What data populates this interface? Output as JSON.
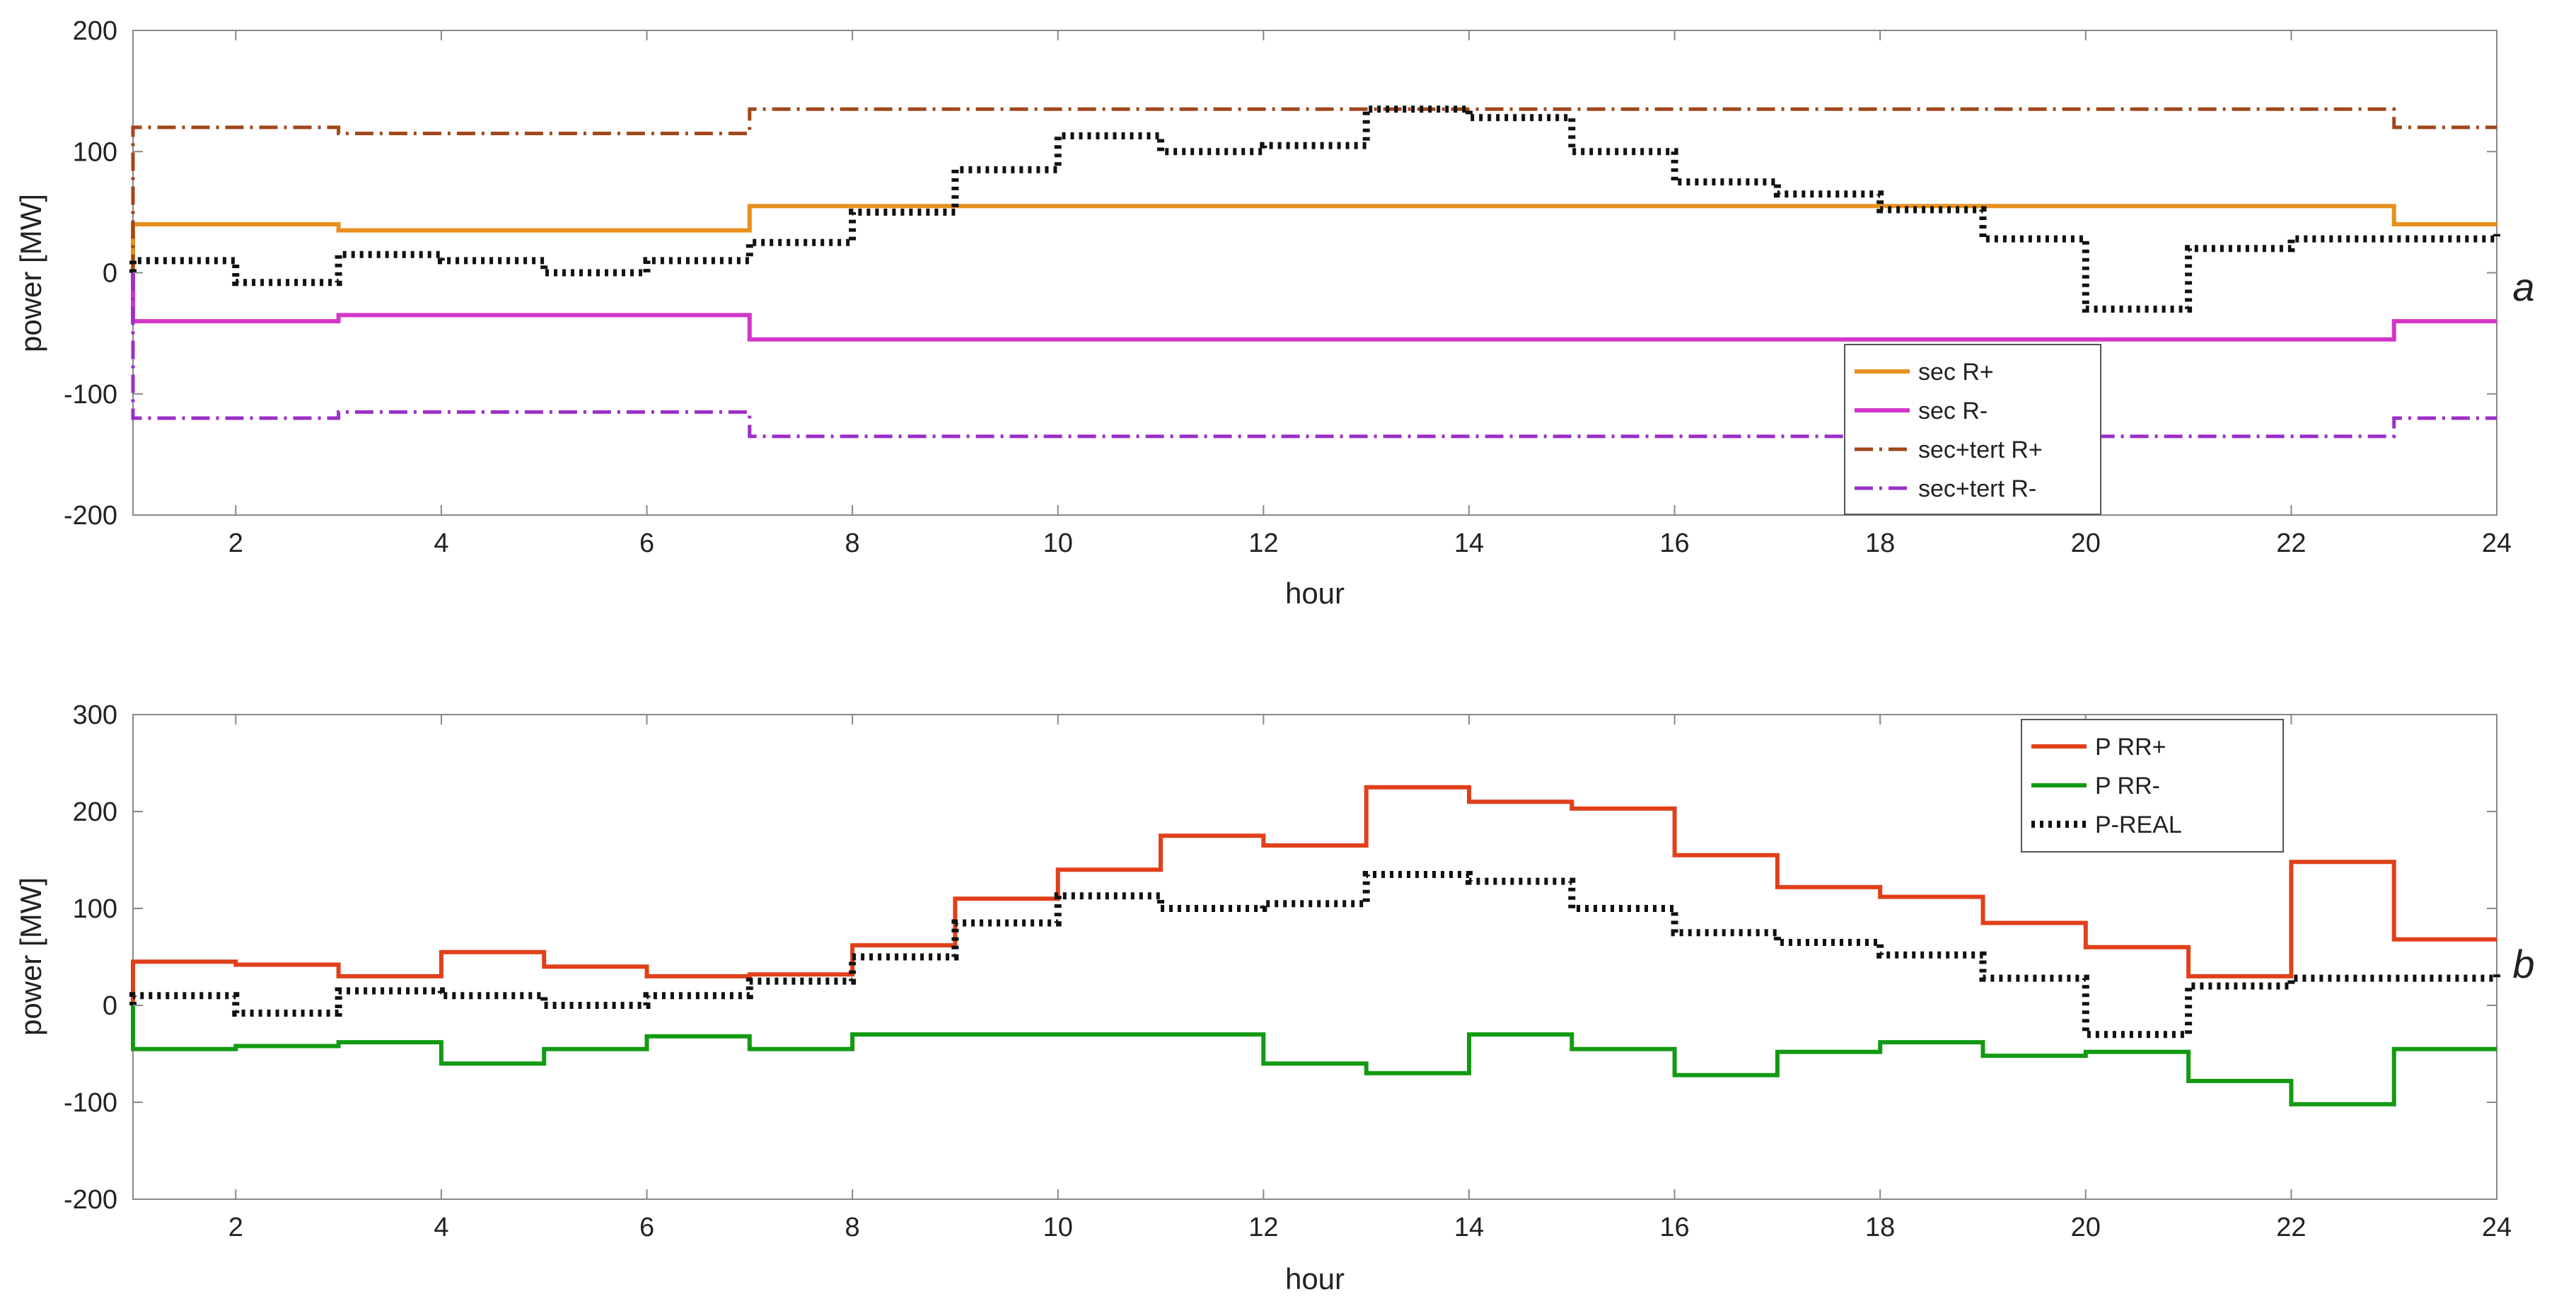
{
  "chart_data": [
    {
      "panel": "a",
      "type": "line",
      "step": "post",
      "xlabel": "hour",
      "ylabel": "power [MW]",
      "xlim": [
        1,
        24
      ],
      "ylim": [
        -200,
        200
      ],
      "xticks": [
        2,
        4,
        6,
        8,
        10,
        12,
        14,
        16,
        18,
        20,
        22,
        24
      ],
      "yticks": [
        -200,
        -100,
        0,
        100,
        200
      ],
      "grid": false,
      "legend_position": "bottom-right",
      "x": [
        1,
        2,
        3,
        4,
        5,
        6,
        7,
        8,
        9,
        10,
        11,
        12,
        13,
        14,
        15,
        16,
        17,
        18,
        19,
        20,
        21,
        22,
        23,
        24
      ],
      "series": [
        {
          "name": "sec R+",
          "color": "#E8901E",
          "dash": "solid",
          "in_legend": true,
          "values": [
            40,
            40,
            35,
            35,
            35,
            35,
            55,
            55,
            55,
            55,
            55,
            55,
            55,
            55,
            55,
            55,
            55,
            55,
            55,
            55,
            55,
            55,
            40,
            40
          ]
        },
        {
          "name": "sec R-",
          "color": "#D236C8",
          "dash": "solid",
          "in_legend": true,
          "values": [
            -40,
            -40,
            -35,
            -35,
            -35,
            -35,
            -55,
            -55,
            -55,
            -55,
            -55,
            -55,
            -55,
            -55,
            -55,
            -55,
            -55,
            -55,
            -55,
            -55,
            -55,
            -55,
            -40,
            -40
          ]
        },
        {
          "name": "sec+tert R+",
          "color": "#A0471A",
          "dash": "dashdot",
          "in_legend": true,
          "values": [
            120,
            120,
            115,
            115,
            115,
            115,
            135,
            135,
            135,
            135,
            135,
            135,
            135,
            135,
            135,
            135,
            135,
            135,
            135,
            135,
            135,
            135,
            120,
            120
          ]
        },
        {
          "name": "sec+tert R-",
          "color": "#9B30C8",
          "dash": "dashdot",
          "in_legend": true,
          "values": [
            -120,
            -120,
            -115,
            -115,
            -115,
            -115,
            -135,
            -135,
            -135,
            -135,
            -135,
            -135,
            -135,
            -135,
            -135,
            -135,
            -135,
            -135,
            -135,
            -135,
            -135,
            -135,
            -120,
            -120
          ]
        },
        {
          "name": "P-REAL",
          "color": "#111111",
          "dash": "dotted",
          "in_legend": false,
          "values": [
            10,
            -8,
            15,
            10,
            0,
            10,
            25,
            50,
            85,
            113,
            100,
            105,
            135,
            128,
            100,
            75,
            65,
            52,
            28,
            -30,
            20,
            28,
            28,
            32
          ]
        }
      ]
    },
    {
      "panel": "b",
      "type": "line",
      "step": "post",
      "xlabel": "hour",
      "ylabel": "power [MW]",
      "xlim": [
        1,
        24
      ],
      "ylim": [
        -200,
        300
      ],
      "xticks": [
        2,
        4,
        6,
        8,
        10,
        12,
        14,
        16,
        18,
        20,
        22,
        24
      ],
      "yticks": [
        -200,
        -100,
        0,
        100,
        200,
        300
      ],
      "grid": false,
      "legend_position": "top-right",
      "x": [
        1,
        2,
        3,
        4,
        5,
        6,
        7,
        8,
        9,
        10,
        11,
        12,
        13,
        14,
        15,
        16,
        17,
        18,
        19,
        20,
        21,
        22,
        23,
        24
      ],
      "series": [
        {
          "name": "P RR+",
          "color": "#E0401A",
          "dash": "solid",
          "in_legend": true,
          "values": [
            45,
            42,
            30,
            55,
            40,
            30,
            32,
            62,
            110,
            140,
            175,
            165,
            225,
            210,
            203,
            155,
            122,
            112,
            85,
            60,
            30,
            148,
            68,
            68
          ]
        },
        {
          "name": "P RR-",
          "color": "#139A13",
          "dash": "solid",
          "in_legend": true,
          "values": [
            -45,
            -42,
            -38,
            -60,
            -45,
            -32,
            -45,
            -30,
            -30,
            -30,
            -30,
            -60,
            -70,
            -30,
            -45,
            -72,
            -48,
            -38,
            -52,
            -48,
            -78,
            -102,
            -45,
            -45
          ]
        },
        {
          "name": "P-REAL",
          "color": "#111111",
          "dash": "dotted",
          "in_legend": true,
          "values": [
            10,
            -8,
            15,
            10,
            0,
            10,
            25,
            50,
            85,
            113,
            100,
            105,
            135,
            128,
            100,
            75,
            65,
            52,
            28,
            -30,
            20,
            28,
            28,
            32
          ]
        }
      ]
    }
  ]
}
